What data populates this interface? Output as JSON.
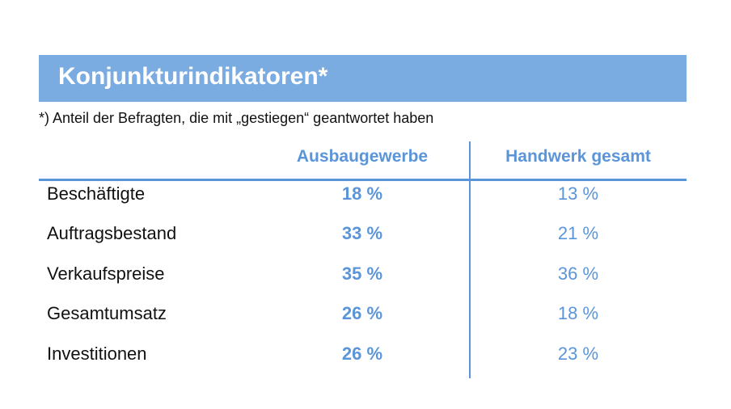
{
  "title": "Konjunkturindikatoren*",
  "footnote": "*) Anteil der Befragten, die mit „gestiegen“ geantwortet haben",
  "colors": {
    "title_bar": "#7aabe1",
    "accent": "#5b95d9",
    "text": "#111111"
  },
  "chart_data": {
    "type": "table",
    "title": "Konjunkturindikatoren*",
    "columns": [
      "Ausbaugewerbe",
      "Handwerk gesamt"
    ],
    "unit": "%",
    "rows": [
      {
        "label": "Beschäftigte",
        "values": [
          18,
          13
        ],
        "display": [
          "18 %",
          "13 %"
        ]
      },
      {
        "label": "Auftragsbestand",
        "values": [
          33,
          21
        ],
        "display": [
          "33 %",
          "21 %"
        ]
      },
      {
        "label": "Verkaufspreise",
        "values": [
          35,
          36
        ],
        "display": [
          "35 %",
          "36 %"
        ]
      },
      {
        "label": "Gesamtumsatz",
        "values": [
          26,
          18
        ],
        "display": [
          "26 %",
          "18 %"
        ]
      },
      {
        "label": "Investitionen",
        "values": [
          26,
          23
        ],
        "display": [
          "26 %",
          "23 %"
        ]
      }
    ]
  }
}
